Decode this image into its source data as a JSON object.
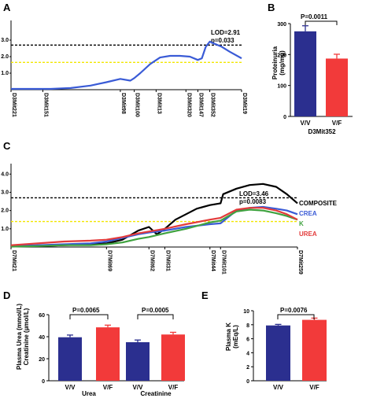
{
  "panels": {
    "A": {
      "letter": "A"
    },
    "B": {
      "letter": "B"
    },
    "C": {
      "letter": "C"
    },
    "D": {
      "letter": "D"
    },
    "E": {
      "letter": "E"
    }
  },
  "colors": {
    "blue_bar": "#2b2f8f",
    "red_bar": "#f23a3a",
    "lod_line_blue": "#3a5bd6",
    "threshold_black": "#000000",
    "threshold_yellow": "#f2e600",
    "composite": "#000000",
    "crea": "#3a5bd6",
    "k": "#3fa23f",
    "urea": "#e33b3b"
  },
  "chart_data": [
    {
      "id": "A",
      "type": "line",
      "yticks": [
        "3.0",
        "2.0",
        "1.0"
      ],
      "ytick_values": [
        3.0,
        2.0,
        1.0
      ],
      "ylim": [
        0,
        4
      ],
      "markers": [
        "D3Mit221",
        "D3Mit151",
        "D3Mit98",
        "D3Mit100",
        "D3Mit13",
        "D3Mit320",
        "D3Mit147",
        "D3Mit352",
        "D3Mit19"
      ],
      "marker_pos": [
        0,
        16,
        55,
        62,
        73,
        88,
        94,
        100,
        116
      ],
      "xlim": [
        0,
        116
      ],
      "thresholds": [
        {
          "value": 2.7,
          "style": "black-dashed"
        },
        {
          "value": 1.65,
          "style": "yellow-dashed"
        }
      ],
      "annotation": {
        "line1": "LOD=2.91",
        "line2": "p=0.033"
      },
      "series": [
        {
          "color_key": "lod_line_blue",
          "x": [
            0,
            10,
            20,
            30,
            40,
            48,
            55,
            60,
            62,
            65,
            70,
            75,
            80,
            85,
            90,
            94,
            96,
            98,
            100,
            102,
            106,
            110,
            116
          ],
          "y": [
            0.05,
            0.05,
            0.05,
            0.1,
            0.25,
            0.45,
            0.65,
            0.55,
            0.7,
            1.0,
            1.55,
            1.95,
            2.05,
            2.05,
            2.0,
            1.8,
            1.9,
            2.6,
            2.91,
            2.8,
            2.6,
            2.3,
            1.9
          ]
        }
      ]
    },
    {
      "id": "B",
      "type": "bar",
      "ylabel_line1": "Proteinuria",
      "ylabel_line2": "(mg/mg)",
      "yticks": [
        "0",
        "100",
        "200",
        "300"
      ],
      "ytick_values": [
        0,
        100,
        200,
        300
      ],
      "ylim": [
        0,
        300
      ],
      "categories": [
        "V/V",
        "V/F"
      ],
      "xlabel": "D3Mit352",
      "values": [
        275,
        187
      ],
      "errors": [
        18,
        14
      ],
      "colors": [
        "#2b2f8f",
        "#f23a3a"
      ],
      "pvalue": "P=0.0011"
    },
    {
      "id": "C",
      "type": "line",
      "yticks": [
        "4.0",
        "3.0",
        "2.0",
        "1.0"
      ],
      "ytick_values": [
        4.0,
        3.0,
        2.0,
        1.0
      ],
      "ylim": [
        0,
        4.4
      ],
      "markers": [
        "D7Mit21",
        "D7Mit69",
        "D7Mit62",
        "D7Mit31",
        "D7Mit44",
        "D7Mit101",
        "D7Mit259"
      ],
      "marker_pos": [
        0,
        36,
        52,
        58,
        75,
        79,
        108
      ],
      "xlim": [
        0,
        108
      ],
      "thresholds": [
        {
          "value": 2.7,
          "style": "black-dashed"
        },
        {
          "value": 1.4,
          "style": "yellow-dashed"
        }
      ],
      "annotation": {
        "line1": "LOD=3.46",
        "line2": "p=0.0083"
      },
      "series": [
        {
          "name": "COMPOSITE",
          "color_key": "composite",
          "x": [
            0,
            10,
            20,
            30,
            36,
            42,
            48,
            52,
            55,
            58,
            62,
            66,
            70,
            75,
            79,
            80,
            85,
            90,
            95,
            100,
            104,
            108
          ],
          "y": [
            0.05,
            0.05,
            0.1,
            0.15,
            0.2,
            0.4,
            0.9,
            1.1,
            0.7,
            1.0,
            1.5,
            1.8,
            2.1,
            2.3,
            2.4,
            2.9,
            3.2,
            3.4,
            3.46,
            3.3,
            2.9,
            2.4
          ]
        },
        {
          "name": "CREA",
          "color_key": "crea",
          "x": [
            0,
            10,
            20,
            30,
            36,
            42,
            48,
            52,
            58,
            66,
            75,
            79,
            85,
            90,
            95,
            100,
            104,
            108
          ],
          "y": [
            0.05,
            0.1,
            0.15,
            0.2,
            0.3,
            0.5,
            0.7,
            0.8,
            0.9,
            1.1,
            1.25,
            1.3,
            2.0,
            2.15,
            2.2,
            2.1,
            2.0,
            1.8
          ]
        },
        {
          "name": "K",
          "color_key": "k",
          "x": [
            0,
            10,
            20,
            30,
            36,
            42,
            48,
            52,
            58,
            66,
            75,
            79,
            85,
            90,
            95,
            100,
            104,
            108
          ],
          "y": [
            0.02,
            0.05,
            0.1,
            0.1,
            0.15,
            0.25,
            0.45,
            0.55,
            0.75,
            1.0,
            1.35,
            1.45,
            1.95,
            2.05,
            2.0,
            1.85,
            1.7,
            1.5
          ]
        },
        {
          "name": "UREA",
          "color_key": "urea",
          "x": [
            0,
            10,
            20,
            30,
            36,
            42,
            48,
            52,
            58,
            66,
            75,
            79,
            85,
            90,
            95,
            100,
            104,
            108
          ],
          "y": [
            0.1,
            0.2,
            0.3,
            0.35,
            0.4,
            0.55,
            0.75,
            0.85,
            1.0,
            1.25,
            1.5,
            1.6,
            2.05,
            2.15,
            2.15,
            2.0,
            1.8,
            1.5
          ]
        }
      ]
    },
    {
      "id": "D",
      "type": "bar",
      "ylabel_line1": "Plasma Urea (mmol/L)",
      "ylabel_line2": "Creatinine (µmol/L)",
      "yticks": [
        "0",
        "20",
        "40",
        "60"
      ],
      "ytick_values": [
        0,
        20,
        40,
        60
      ],
      "ylim": [
        0,
        60
      ],
      "categories": [
        "V/V",
        "V/F",
        "V/V",
        "V/F"
      ],
      "groups": [
        "Urea",
        "Creatinine"
      ],
      "values": [
        39.5,
        48.5,
        35,
        42
      ],
      "errors": [
        2,
        2,
        2,
        2
      ],
      "colors": [
        "#2b2f8f",
        "#f23a3a",
        "#2b2f8f",
        "#f23a3a"
      ],
      "pvalues": [
        "P=0.0065",
        "P=0.0005"
      ]
    },
    {
      "id": "E",
      "type": "bar",
      "ylabel_line1": "Plasma K",
      "ylabel_line2": "(mEq/L)",
      "yticks": [
        "0",
        "2",
        "4",
        "6",
        "8",
        "10"
      ],
      "ytick_values": [
        0,
        2,
        4,
        6,
        8,
        10
      ],
      "ylim": [
        0,
        10
      ],
      "categories": [
        "V/V",
        "V/F"
      ],
      "values": [
        7.9,
        8.7
      ],
      "errors": [
        0.15,
        0.25
      ],
      "colors": [
        "#2b2f8f",
        "#f23a3a"
      ],
      "pvalue": "P=0.0076"
    }
  ]
}
